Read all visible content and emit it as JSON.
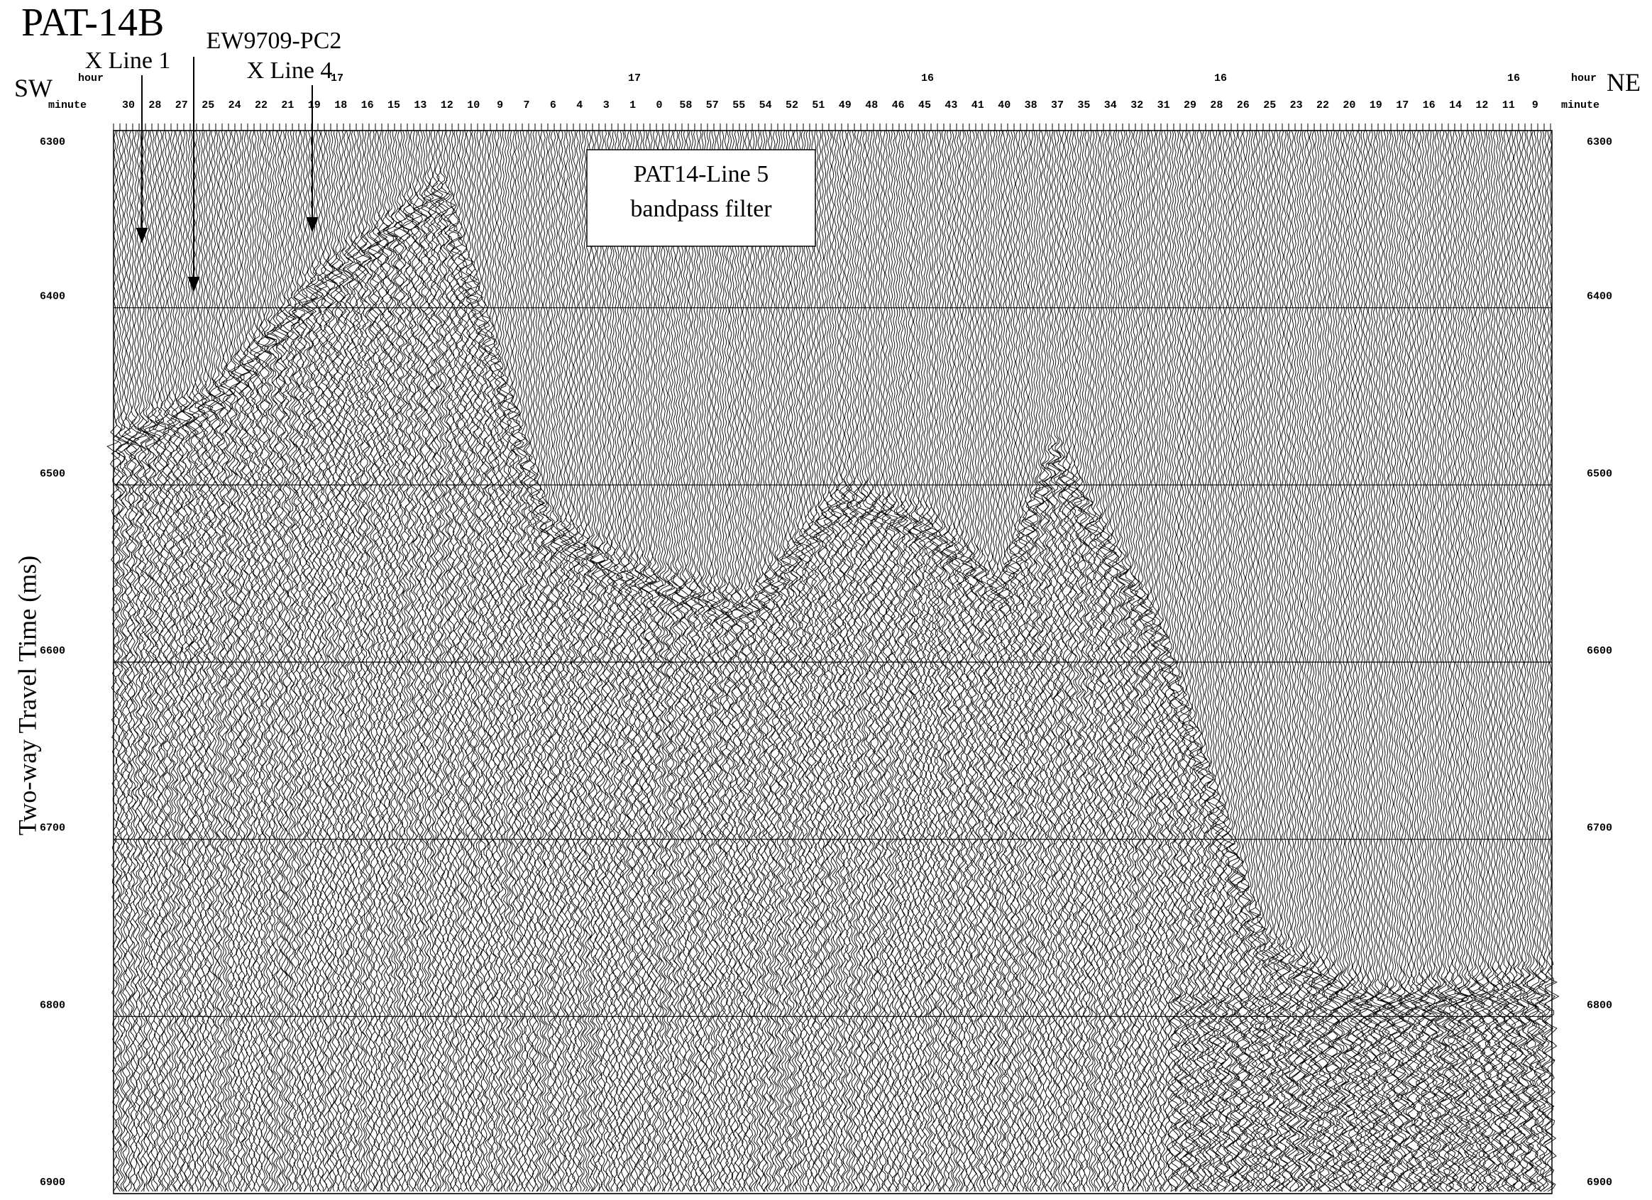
{
  "title": "PAT-14B",
  "labels": {
    "sw": "SW",
    "ne": "NE",
    "x_line_1": "X Line 1",
    "ew9709": "EW9709-PC2",
    "x_line_4": "X Line 4"
  },
  "top_axis": {
    "hour_label": "hour",
    "minute_label": "minute",
    "hours": [
      17,
      17,
      16,
      16,
      16
    ],
    "minutes": [
      30,
      28,
      27,
      25,
      24,
      22,
      21,
      19,
      18,
      16,
      15,
      13,
      12,
      10,
      9,
      7,
      6,
      4,
      3,
      1,
      0,
      58,
      57,
      55,
      54,
      52,
      51,
      49,
      48,
      46,
      45,
      43,
      41,
      40,
      38,
      37,
      35,
      34,
      32,
      31,
      29,
      28,
      26,
      25,
      23,
      22,
      20,
      19,
      17,
      16,
      14,
      12,
      11,
      9
    ]
  },
  "annotation": [
    "PAT14-Line 5",
    "bandpass filter"
  ],
  "y_axis": {
    "label": "Two-way Travel Time (ms)",
    "lim": [
      6300,
      6900
    ],
    "ticks": [
      6300,
      6400,
      6500,
      6600,
      6700,
      6800,
      6900
    ]
  }
}
